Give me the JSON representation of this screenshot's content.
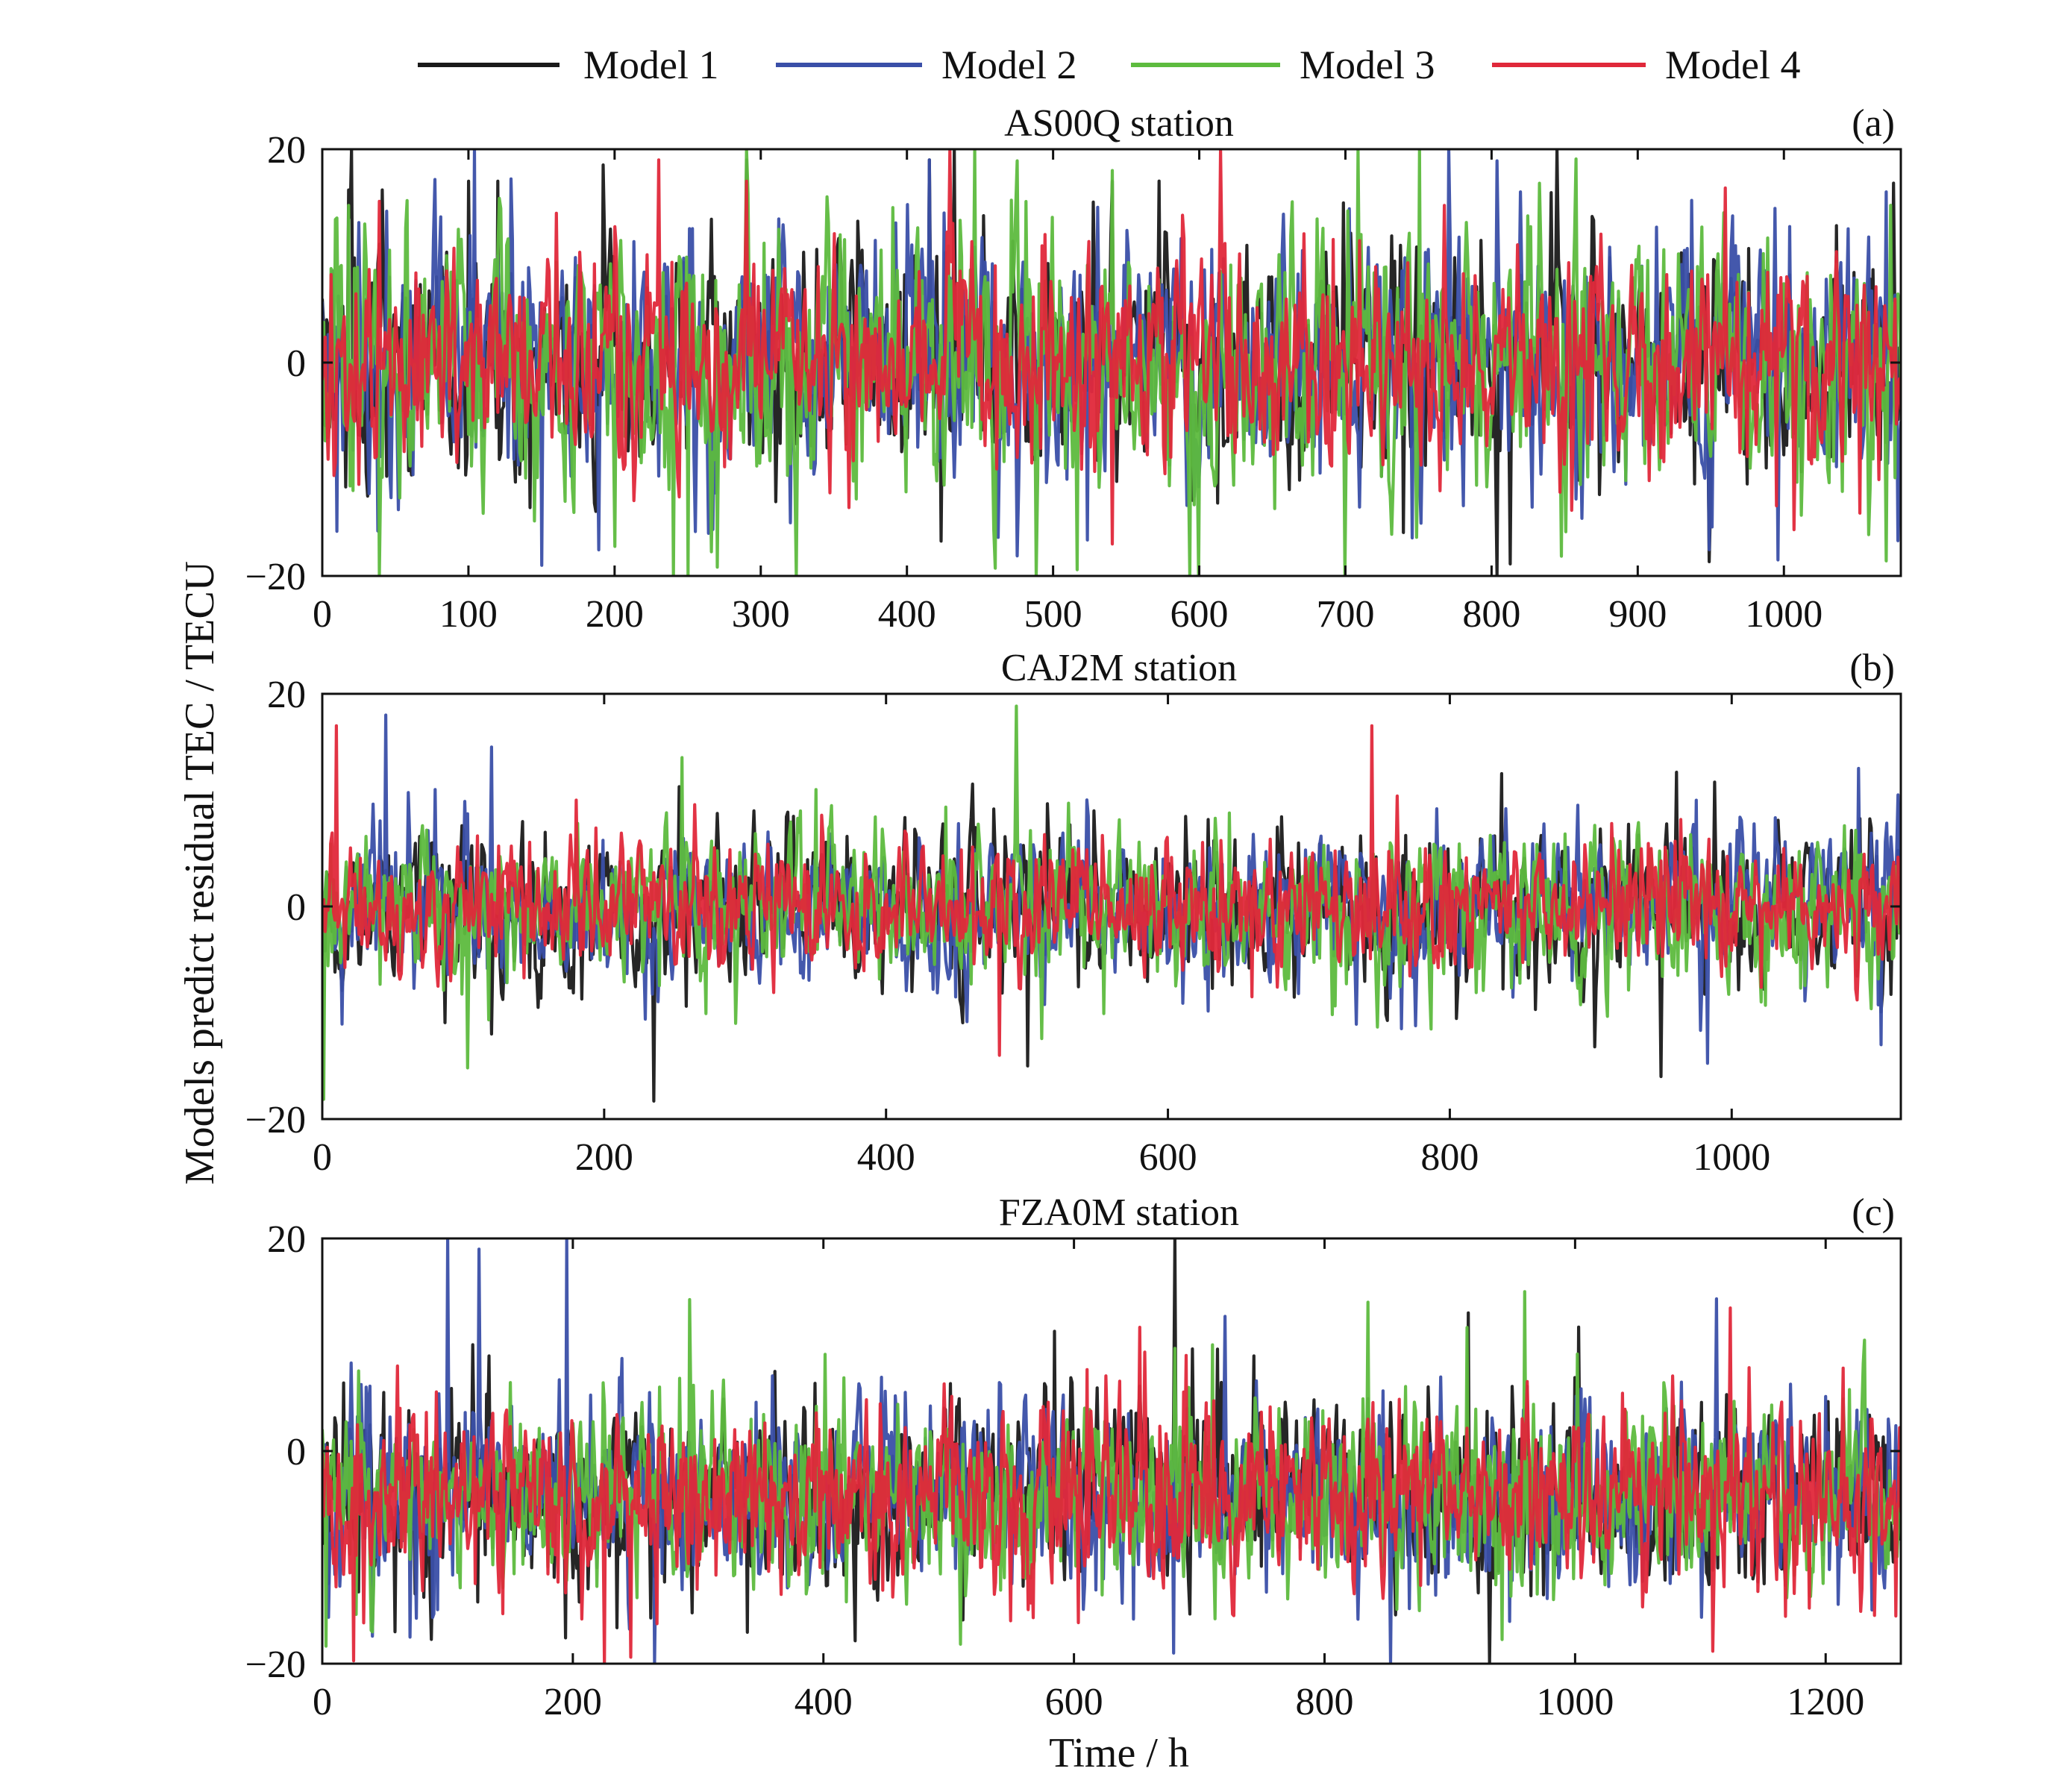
{
  "legend": {
    "items": [
      {
        "label": "Model 1",
        "color": "#1a1a1a"
      },
      {
        "label": "Model 2",
        "color": "#3a4fa8"
      },
      {
        "label": "Model 3",
        "color": "#5dbb3e"
      },
      {
        "label": "Model 4",
        "color": "#e0283a"
      }
    ]
  },
  "axes": {
    "ylabel": "Models predict residual TEC / TECU",
    "xlabel": "Time / h"
  },
  "chart_data": [
    {
      "type": "line",
      "title": "AS00Q station",
      "panel_label": "(a)",
      "xlim": [
        0,
        1080
      ],
      "ylim": [
        -20,
        20
      ],
      "xticks": [
        0,
        100,
        200,
        300,
        400,
        500,
        600,
        700,
        800,
        900,
        1000
      ],
      "yticks": [
        -20,
        0,
        20
      ],
      "xlabel": "",
      "ylabel": "",
      "n_points": 1080,
      "series": [
        {
          "name": "Model 1",
          "amplitude": 9,
          "peaks": [
            [
              100,
              17
            ],
            [
              120,
              17
            ],
            [
              290,
              19
            ],
            [
              415,
              19
            ],
            [
              845,
              20
            ],
            [
              540,
              17
            ]
          ]
        },
        {
          "name": "Model 2",
          "amplitude": 10,
          "peaks": [
            [
              415,
              19
            ],
            [
              820,
              16
            ],
            [
              1070,
              16
            ],
            [
              150,
              -19
            ]
          ]
        },
        {
          "name": "Model 3",
          "amplitude": 11,
          "peaks": [
            [
              540,
              18
            ],
            [
              600,
              -20
            ],
            [
              700,
              -20
            ],
            [
              240,
              -20
            ]
          ]
        },
        {
          "name": "Model 4",
          "amplitude": 8,
          "peaks": [
            [
              230,
              19
            ],
            [
              290,
              17
            ],
            [
              540,
              -17
            ],
            [
              160,
              14
            ]
          ]
        }
      ]
    },
    {
      "type": "line",
      "title": "CAJ2M station",
      "panel_label": "(b)",
      "xlim": [
        0,
        1120
      ],
      "ylim": [
        -20,
        20
      ],
      "xticks": [
        0,
        200,
        400,
        600,
        800,
        1000
      ],
      "yticks": [
        -20,
        0,
        20
      ],
      "xlabel": "",
      "ylabel": "",
      "n_points": 1120,
      "series": [
        {
          "name": "Model 1",
          "amplitude": 6,
          "peaks": [
            [
              500,
              -15
            ],
            [
              950,
              -16
            ],
            [
              120,
              -12
            ]
          ]
        },
        {
          "name": "Model 2",
          "amplitude": 6,
          "peaks": [
            [
              45,
              18
            ],
            [
              120,
              15
            ],
            [
              80,
              11
            ]
          ]
        },
        {
          "name": "Model 3",
          "amplitude": 6,
          "peaks": [
            [
              255,
              14
            ],
            [
              350,
              11
            ]
          ]
        },
        {
          "name": "Model 4",
          "amplitude": 5,
          "peaks": [
            [
              10,
              17
            ],
            [
              745,
              17
            ],
            [
              480,
              -14
            ],
            [
              180,
              10
            ]
          ]
        }
      ]
    },
    {
      "type": "line",
      "title": "FZA0M station",
      "panel_label": "(c)",
      "xlim": [
        0,
        1260
      ],
      "ylim": [
        -20,
        20
      ],
      "xticks": [
        0,
        200,
        400,
        600,
        800,
        1000,
        1200
      ],
      "yticks": [
        -20,
        0,
        20
      ],
      "xlabel": "",
      "ylabel": "",
      "n_points": 1260,
      "series": [
        {
          "name": "Model 1",
          "amplitude": 7,
          "peaks": [
            [
              915,
              13
            ],
            [
              120,
              10
            ]
          ]
        },
        {
          "name": "Model 2",
          "amplitude": 7,
          "peaks": [
            [
              100,
              20
            ],
            [
              125,
              19
            ],
            [
              195,
              20
            ],
            [
              265,
              -20
            ],
            [
              680,
              -19
            ]
          ]
        },
        {
          "name": "Model 3",
          "amplitude": 7,
          "peaks": [
            [
              835,
              14
            ],
            [
              960,
              15
            ],
            [
              40,
              -17
            ]
          ]
        },
        {
          "name": "Model 4",
          "amplitude": 7,
          "peaks": [
            [
              690,
              9
            ],
            [
              60,
              8
            ]
          ]
        }
      ]
    }
  ]
}
